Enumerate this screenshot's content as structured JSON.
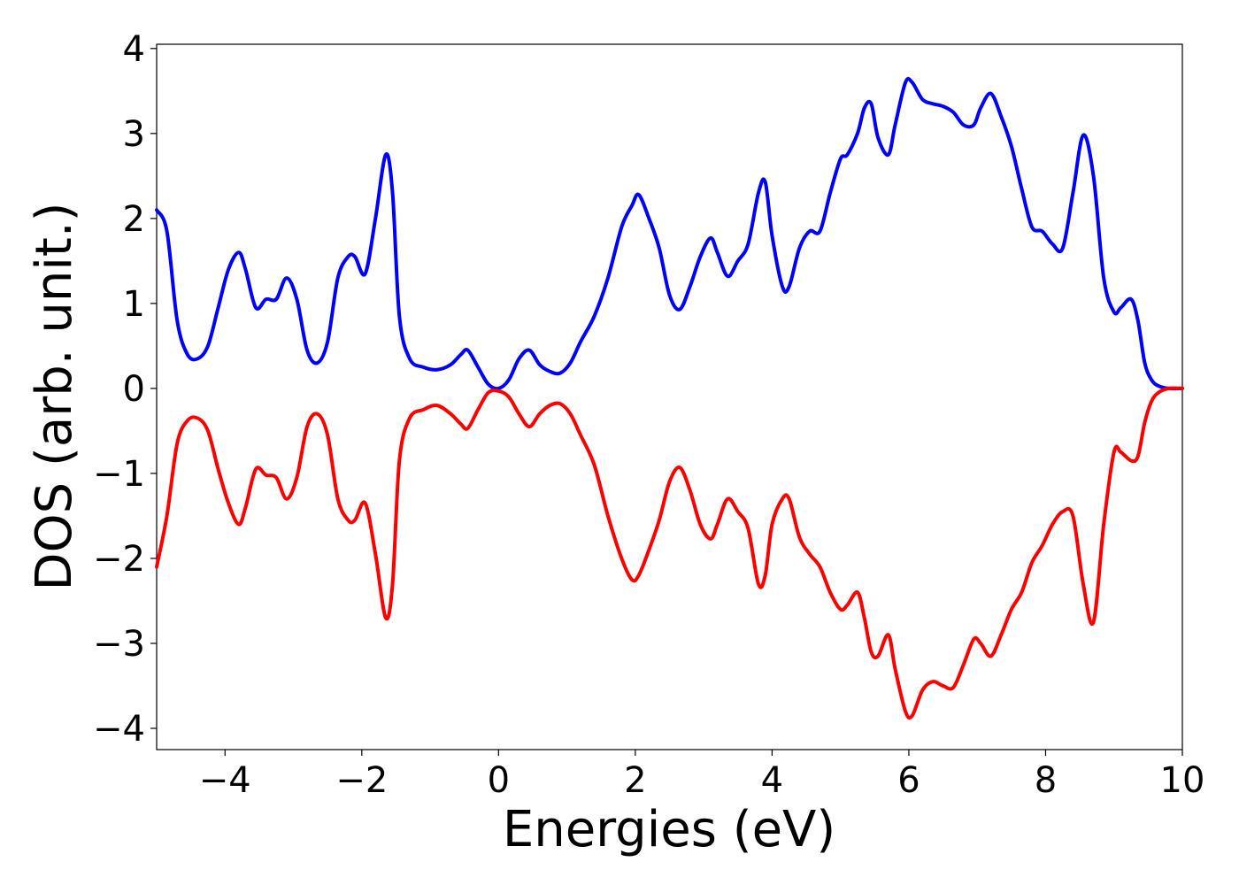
{
  "chart_data": {
    "type": "line",
    "title": "",
    "xlabel": "Energies (eV)",
    "ylabel": "DOS (arb. unit.)",
    "xlim": [
      -5,
      10
    ],
    "ylim": [
      -4.25,
      4.05
    ],
    "xticks": [
      -4,
      -2,
      0,
      2,
      4,
      6,
      8,
      10
    ],
    "xtick_labels": [
      "−4",
      "−2",
      "0",
      "2",
      "4",
      "6",
      "8",
      "10"
    ],
    "yticks": [
      -4,
      -3,
      -2,
      -1,
      0,
      1,
      2,
      3,
      4
    ],
    "ytick_labels": [
      "−4",
      "−3",
      "−2",
      "−1",
      "0",
      "1",
      "2",
      "3",
      "4"
    ],
    "grid": false,
    "legend": "none",
    "series": [
      {
        "color": "#0000ff",
        "x": [
          -5.0,
          -4.85,
          -4.7,
          -4.55,
          -4.4,
          -4.25,
          -4.1,
          -3.95,
          -3.8,
          -3.7,
          -3.55,
          -3.4,
          -3.25,
          -3.1,
          -2.95,
          -2.8,
          -2.65,
          -2.5,
          -2.35,
          -2.2,
          -2.1,
          -1.95,
          -1.8,
          -1.65,
          -1.55,
          -1.45,
          -1.3,
          -1.1,
          -0.9,
          -0.7,
          -0.55,
          -0.45,
          -0.3,
          -0.15,
          0.0,
          0.15,
          0.3,
          0.45,
          0.6,
          0.75,
          0.9,
          1.05,
          1.2,
          1.4,
          1.6,
          1.8,
          1.95,
          2.05,
          2.2,
          2.35,
          2.5,
          2.65,
          2.8,
          2.95,
          3.1,
          3.2,
          3.35,
          3.5,
          3.65,
          3.8,
          3.9,
          4.0,
          4.15,
          4.25,
          4.4,
          4.55,
          4.7,
          4.85,
          5.0,
          5.1,
          5.25,
          5.35,
          5.45,
          5.55,
          5.7,
          5.8,
          5.95,
          6.05,
          6.2,
          6.35,
          6.5,
          6.65,
          6.8,
          6.95,
          7.05,
          7.2,
          7.35,
          7.5,
          7.65,
          7.8,
          7.95,
          8.1,
          8.25,
          8.4,
          8.55,
          8.7,
          8.85,
          9.0,
          9.1,
          9.25,
          9.35,
          9.45,
          9.55,
          9.65,
          9.8,
          10.0
        ],
        "y": [
          2.1,
          1.85,
          0.8,
          0.4,
          0.35,
          0.5,
          0.95,
          1.4,
          1.6,
          1.4,
          0.95,
          1.05,
          1.05,
          1.3,
          1.05,
          0.45,
          0.3,
          0.55,
          1.3,
          1.55,
          1.55,
          1.35,
          2.0,
          2.75,
          2.3,
          0.85,
          0.35,
          0.25,
          0.22,
          0.28,
          0.4,
          0.45,
          0.25,
          0.05,
          0.0,
          0.1,
          0.35,
          0.45,
          0.28,
          0.2,
          0.18,
          0.3,
          0.55,
          0.85,
          1.3,
          1.9,
          2.15,
          2.28,
          2.0,
          1.65,
          1.1,
          0.93,
          1.2,
          1.55,
          1.77,
          1.6,
          1.32,
          1.5,
          1.7,
          2.3,
          2.43,
          1.8,
          1.2,
          1.2,
          1.65,
          1.85,
          1.85,
          2.3,
          2.7,
          2.75,
          3.0,
          3.3,
          3.35,
          2.95,
          2.75,
          3.1,
          3.6,
          3.6,
          3.4,
          3.35,
          3.32,
          3.25,
          3.1,
          3.1,
          3.3,
          3.47,
          3.2,
          2.85,
          2.35,
          1.9,
          1.85,
          1.7,
          1.65,
          2.3,
          2.98,
          2.5,
          1.3,
          0.9,
          0.95,
          1.05,
          0.8,
          0.3,
          0.1,
          0.03,
          0.0,
          0.0
        ]
      },
      {
        "color": "#ff0000",
        "x": [
          -5.0,
          -4.85,
          -4.7,
          -4.55,
          -4.4,
          -4.25,
          -4.1,
          -3.95,
          -3.8,
          -3.7,
          -3.55,
          -3.4,
          -3.25,
          -3.1,
          -2.95,
          -2.8,
          -2.65,
          -2.5,
          -2.35,
          -2.2,
          -2.1,
          -1.95,
          -1.8,
          -1.65,
          -1.55,
          -1.45,
          -1.3,
          -1.1,
          -0.9,
          -0.7,
          -0.55,
          -0.45,
          -0.3,
          -0.15,
          0.0,
          0.15,
          0.3,
          0.45,
          0.6,
          0.75,
          0.9,
          1.05,
          1.2,
          1.4,
          1.6,
          1.8,
          1.95,
          2.05,
          2.2,
          2.35,
          2.5,
          2.65,
          2.8,
          2.95,
          3.1,
          3.2,
          3.35,
          3.5,
          3.65,
          3.8,
          3.9,
          4.0,
          4.15,
          4.25,
          4.4,
          4.55,
          4.7,
          4.85,
          5.0,
          5.1,
          5.25,
          5.35,
          5.45,
          5.55,
          5.7,
          5.8,
          5.95,
          6.05,
          6.2,
          6.35,
          6.5,
          6.65,
          6.8,
          6.95,
          7.05,
          7.2,
          7.35,
          7.5,
          7.65,
          7.8,
          7.95,
          8.1,
          8.25,
          8.4,
          8.55,
          8.7,
          8.85,
          9.0,
          9.1,
          9.25,
          9.35,
          9.45,
          9.55,
          9.65,
          9.8,
          10.0
        ],
        "y": [
          -2.1,
          -1.5,
          -0.65,
          -0.38,
          -0.35,
          -0.5,
          -0.95,
          -1.35,
          -1.6,
          -1.4,
          -0.95,
          -1.02,
          -1.05,
          -1.3,
          -1.05,
          -0.45,
          -0.3,
          -0.55,
          -1.3,
          -1.55,
          -1.55,
          -1.35,
          -1.95,
          -2.7,
          -2.3,
          -0.85,
          -0.35,
          -0.25,
          -0.2,
          -0.3,
          -0.42,
          -0.47,
          -0.25,
          -0.05,
          -0.03,
          -0.1,
          -0.3,
          -0.45,
          -0.3,
          -0.2,
          -0.18,
          -0.3,
          -0.55,
          -0.9,
          -1.5,
          -2.0,
          -2.25,
          -2.2,
          -1.9,
          -1.55,
          -1.1,
          -0.93,
          -1.2,
          -1.6,
          -1.77,
          -1.6,
          -1.3,
          -1.45,
          -1.65,
          -2.3,
          -2.2,
          -1.6,
          -1.3,
          -1.3,
          -1.75,
          -1.95,
          -2.1,
          -2.4,
          -2.6,
          -2.55,
          -2.4,
          -2.7,
          -3.1,
          -3.15,
          -2.9,
          -3.3,
          -3.8,
          -3.85,
          -3.55,
          -3.45,
          -3.5,
          -3.52,
          -3.25,
          -2.95,
          -3.0,
          -3.15,
          -2.9,
          -2.6,
          -2.4,
          -2.05,
          -1.85,
          -1.6,
          -1.45,
          -1.5,
          -2.3,
          -2.75,
          -1.6,
          -0.75,
          -0.75,
          -0.85,
          -0.8,
          -0.4,
          -0.15,
          -0.05,
          0.0,
          0.0
        ]
      }
    ]
  }
}
